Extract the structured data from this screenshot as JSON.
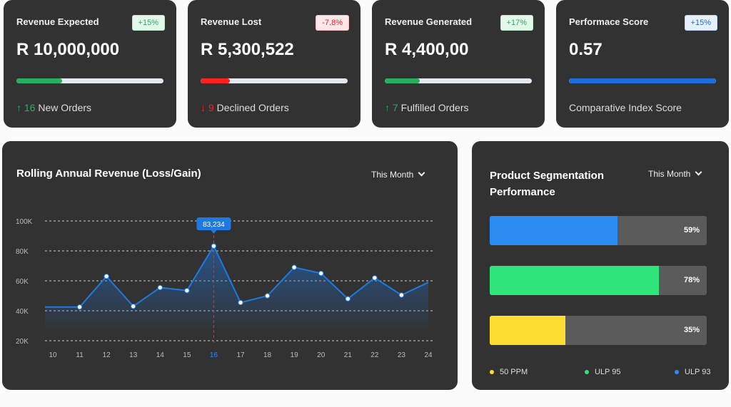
{
  "kpis": [
    {
      "title": "Revenue Expected",
      "badge": "+15%",
      "value": "R 10,000,000",
      "progress": 0.31,
      "arrow": "↑",
      "count": "16",
      "footer": "New Orders",
      "accent": "#27ae60",
      "badge_bg": "#e3f8e9"
    },
    {
      "title": "Revenue Lost",
      "badge": "-7.8%",
      "value": "R 5,300,522",
      "progress": 0.2,
      "arrow": "↓",
      "count": "9",
      "footer": "Declined Orders",
      "accent": "#ff2020",
      "badge_bg": "#fde7e9"
    },
    {
      "title": "Revenue Generated",
      "badge": "+17%",
      "value": "R 4,400,00",
      "progress": 0.24,
      "arrow": "↑",
      "count": "7",
      "footer": "Fulfilled Orders",
      "accent": "#27ae60",
      "badge_bg": "#e3f8e9"
    },
    {
      "title": "Performace Score",
      "badge": "+15%",
      "value": "0.57",
      "progress": 1.0,
      "arrow": "",
      "count": "",
      "footer": "Comparative Index Score",
      "accent": "#1a6fdc",
      "badge_bg": "#e6effb"
    }
  ],
  "revenue": {
    "title": "Rolling Annual Revenue (Loss/Gain)",
    "period": "This Month",
    "tooltip": "83,234"
  },
  "chart_data": {
    "type": "area",
    "x": [
      10,
      11,
      12,
      13,
      14,
      15,
      16,
      17,
      18,
      19,
      20,
      21,
      22,
      23,
      24
    ],
    "values": [
      42.5,
      42.5,
      63,
      43,
      55.5,
      53.5,
      83.234,
      45.5,
      50,
      69,
      65,
      48,
      62,
      50.5,
      59
    ],
    "unit": "K",
    "ylim": [
      20,
      100
    ],
    "yticks": [
      "20K",
      "40K",
      "60K",
      "80K",
      "100K"
    ],
    "highlight_x": 16,
    "grid": true,
    "color": "#1e7ae0"
  },
  "segments": {
    "title": "Product Segmentation Performance",
    "period": "This Month",
    "bars": [
      {
        "label": "59%",
        "value": 59,
        "color": "#2a8bf2"
      },
      {
        "label": "78%",
        "value": 78,
        "color": "#2fe57b"
      },
      {
        "label": "35%",
        "value": 35,
        "color": "#fcdc2e"
      }
    ],
    "legend": [
      {
        "label": "50 PPM",
        "color": "#fcdc2e"
      },
      {
        "label": "ULP 95",
        "color": "#2fe57b"
      },
      {
        "label": "ULP 93",
        "color": "#2a8bf2"
      }
    ]
  }
}
